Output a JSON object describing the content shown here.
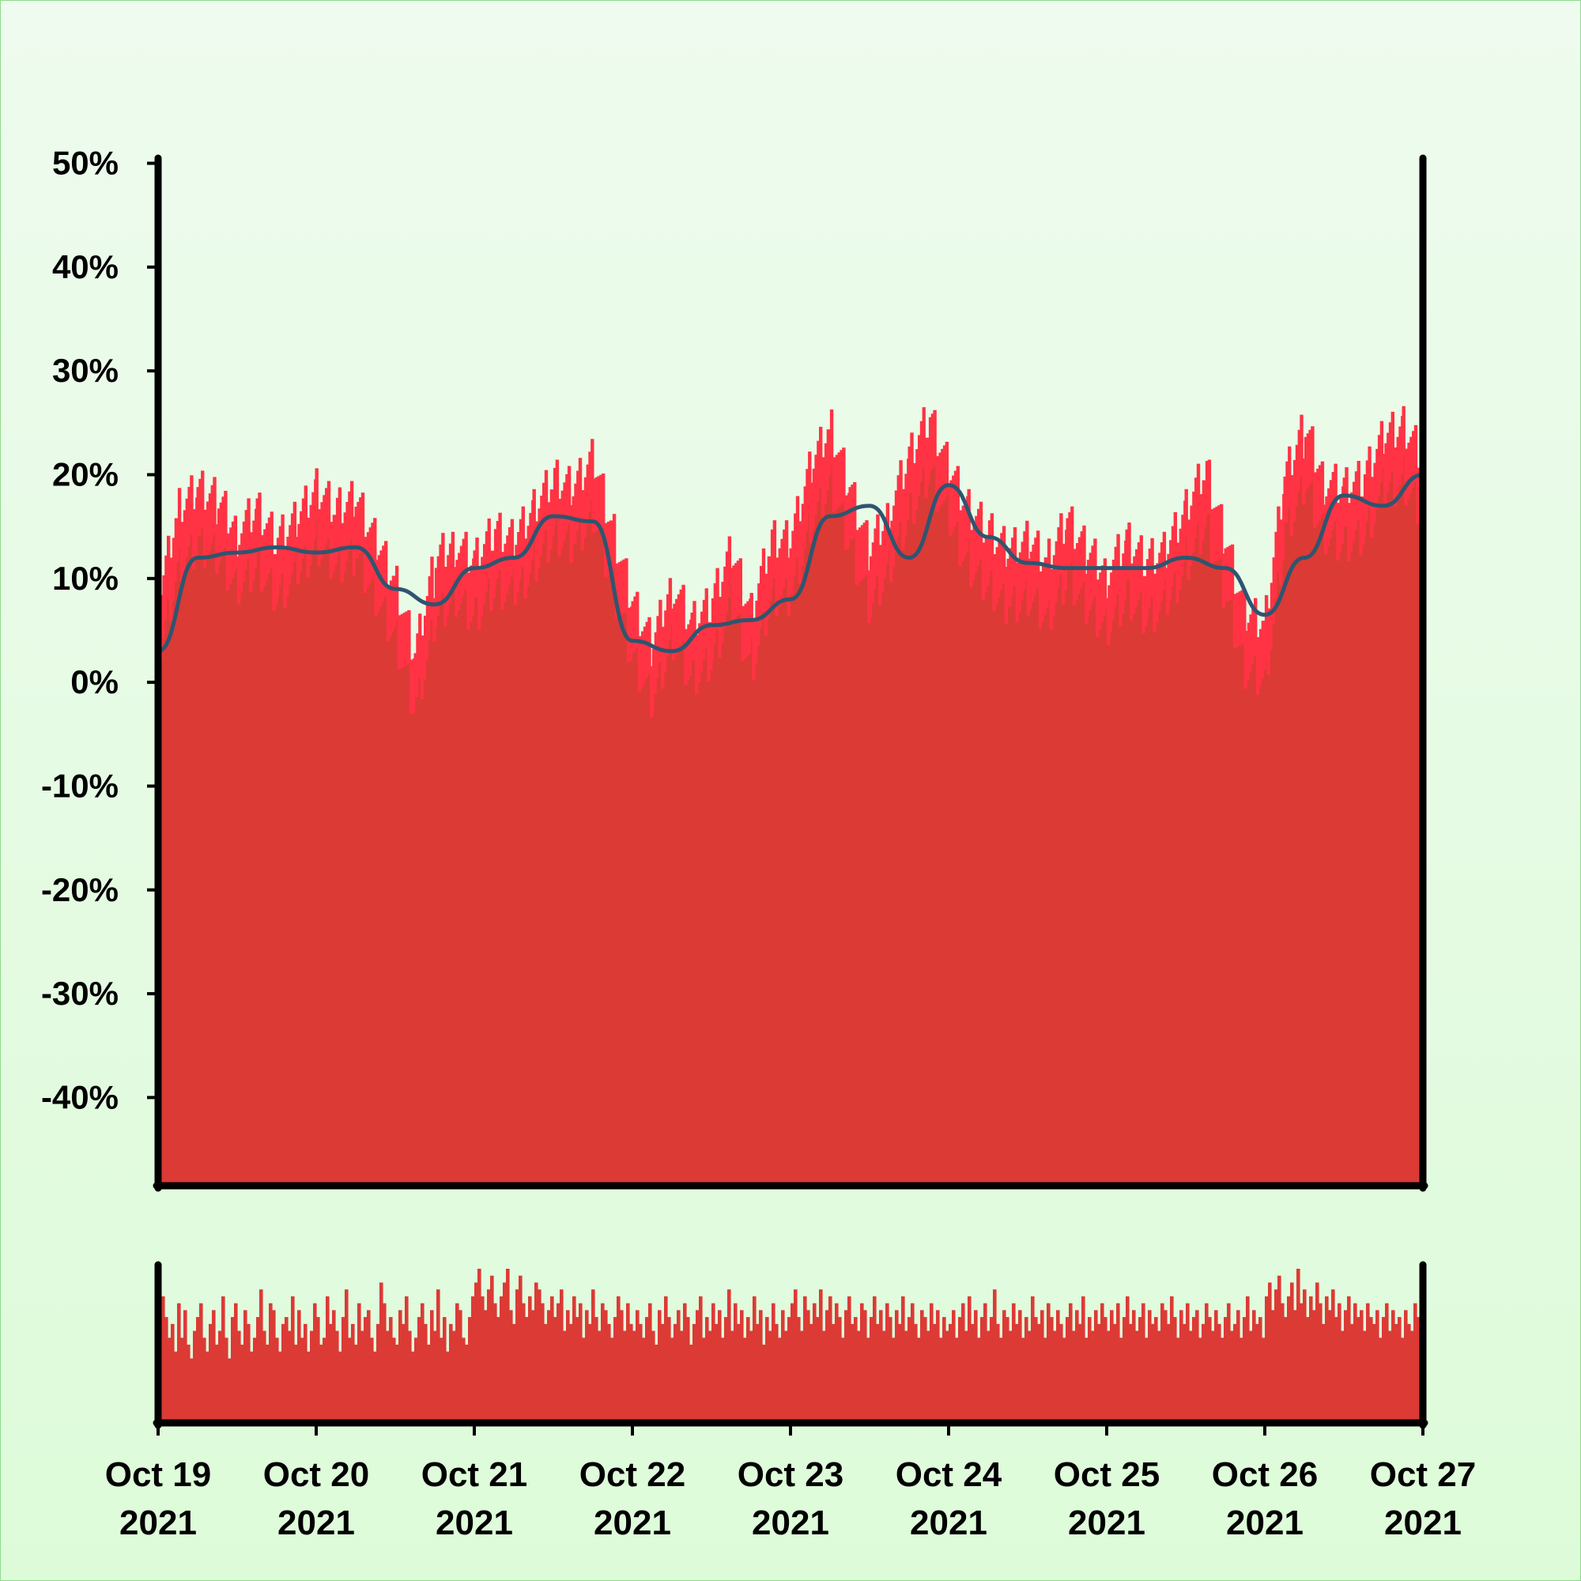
{
  "chart_data": {
    "type": "area",
    "y_axis": {
      "ticks": [
        "50%",
        "40%",
        "30%",
        "20%",
        "10%",
        "0%",
        "-10%",
        "-20%",
        "-30%",
        "-40%"
      ],
      "tick_values": [
        50,
        40,
        30,
        20,
        10,
        0,
        -10,
        -20,
        -30,
        -40
      ],
      "range": [
        -48.5,
        50.5
      ],
      "unit": "%"
    },
    "x_axis": {
      "range": [
        "2021-10-19",
        "2021-10-27"
      ],
      "ticks": [
        {
          "line1": "Oct 19",
          "line2": "2021"
        },
        {
          "line1": "Oct 20",
          "line2": "2021"
        },
        {
          "line1": "Oct 21",
          "line2": "2021"
        },
        {
          "line1": "Oct 22",
          "line2": "2021"
        },
        {
          "line1": "Oct 23",
          "line2": "2021"
        },
        {
          "line1": "Oct 24",
          "line2": "2021"
        },
        {
          "line1": "Oct 25",
          "line2": "2021"
        },
        {
          "line1": "Oct 26",
          "line2": "2021"
        },
        {
          "line1": "Oct 27",
          "line2": "2021"
        }
      ]
    },
    "grid": false,
    "series": [
      {
        "kind": "area",
        "color": "#dc3a35",
        "outline_color": "#ff3344",
        "x": [
          "2021-10-19 00:00",
          "2021-10-19 03:00",
          "2021-10-19 06:00",
          "2021-10-19 09:00",
          "2021-10-19 12:00",
          "2021-10-19 15:00",
          "2021-10-19 18:00",
          "2021-10-19 21:00",
          "2021-10-20 00:00",
          "2021-10-20 03:00",
          "2021-10-20 06:00",
          "2021-10-20 09:00",
          "2021-10-20 12:00",
          "2021-10-20 15:00",
          "2021-10-20 18:00",
          "2021-10-20 21:00",
          "2021-10-21 00:00",
          "2021-10-21 03:00",
          "2021-10-21 06:00",
          "2021-10-21 09:00",
          "2021-10-21 12:00",
          "2021-10-21 15:00",
          "2021-10-21 18:00",
          "2021-10-21 21:00",
          "2021-10-22 00:00",
          "2021-10-22 03:00",
          "2021-10-22 06:00",
          "2021-10-22 09:00",
          "2021-10-22 12:00",
          "2021-10-22 15:00",
          "2021-10-22 18:00",
          "2021-10-22 21:00",
          "2021-10-23 00:00",
          "2021-10-23 03:00",
          "2021-10-23 06:00",
          "2021-10-23 09:00",
          "2021-10-23 12:00",
          "2021-10-23 15:00",
          "2021-10-23 18:00",
          "2021-10-23 21:00",
          "2021-10-24 00:00",
          "2021-10-24 03:00",
          "2021-10-24 06:00",
          "2021-10-24 09:00",
          "2021-10-24 12:00",
          "2021-10-24 15:00",
          "2021-10-24 18:00",
          "2021-10-24 21:00",
          "2021-10-25 00:00",
          "2021-10-25 03:00",
          "2021-10-25 06:00",
          "2021-10-25 09:00",
          "2021-10-25 12:00",
          "2021-10-25 15:00",
          "2021-10-25 18:00",
          "2021-10-25 21:00",
          "2021-10-26 00:00",
          "2021-10-26 03:00",
          "2021-10-26 06:00",
          "2021-10-26 09:00",
          "2021-10-26 12:00",
          "2021-10-26 15:00",
          "2021-10-26 18:00",
          "2021-10-26 21:00",
          "2021-10-27 00:00"
        ],
        "values": [
          5,
          14,
          16,
          15,
          12,
          14,
          11,
          13,
          16,
          14,
          15,
          11,
          7,
          0,
          9,
          11,
          9,
          12,
          11,
          14,
          17,
          16,
          19,
          12,
          5,
          1,
          7,
          3,
          5,
          10,
          4,
          11,
          11,
          18,
          22,
          16,
          10,
          14,
          19,
          23,
          18,
          14,
          12,
          10,
          11,
          9,
          13,
          10,
          8,
          11,
          9,
          10,
          14,
          18,
          11,
          4,
          3,
          17,
          22,
          17,
          16,
          17,
          21,
          22,
          19
        ]
      },
      {
        "kind": "line",
        "color": "#2e5570",
        "x": [
          "2021-10-19 00:00",
          "2021-10-19 06:00",
          "2021-10-19 12:00",
          "2021-10-19 18:00",
          "2021-10-20 00:00",
          "2021-10-20 06:00",
          "2021-10-20 12:00",
          "2021-10-20 18:00",
          "2021-10-21 00:00",
          "2021-10-21 06:00",
          "2021-10-21 12:00",
          "2021-10-21 18:00",
          "2021-10-22 00:00",
          "2021-10-22 06:00",
          "2021-10-22 12:00",
          "2021-10-22 18:00",
          "2021-10-23 00:00",
          "2021-10-23 06:00",
          "2021-10-23 12:00",
          "2021-10-23 18:00",
          "2021-10-24 00:00",
          "2021-10-24 06:00",
          "2021-10-24 12:00",
          "2021-10-24 18:00",
          "2021-10-25 00:00",
          "2021-10-25 06:00",
          "2021-10-25 12:00",
          "2021-10-25 18:00",
          "2021-10-26 00:00",
          "2021-10-26 06:00",
          "2021-10-26 12:00",
          "2021-10-26 18:00",
          "2021-10-27 00:00"
        ],
        "values": [
          3,
          12,
          12.5,
          13,
          12.5,
          13,
          9,
          7.5,
          11,
          12,
          16,
          15.5,
          4,
          3,
          5.5,
          6,
          8,
          16,
          17,
          12,
          19,
          14,
          11.5,
          11,
          11,
          11,
          12,
          11,
          6.5,
          12,
          18,
          17,
          20
        ]
      }
    ],
    "navigator": {
      "type": "bar",
      "color": "#dc3a35",
      "values": [
        11,
        18,
        15,
        12,
        14,
        10,
        17,
        12,
        16,
        11,
        9,
        13,
        15,
        17,
        12,
        10,
        14,
        16,
        11,
        13,
        18,
        12,
        9,
        15,
        17,
        13,
        11,
        16,
        14,
        10,
        12,
        15,
        19,
        13,
        11,
        17,
        16,
        12,
        10,
        14,
        15,
        13,
        18,
        11,
        16,
        12,
        14,
        10,
        13,
        17,
        15,
        11,
        12,
        18,
        14,
        16,
        13,
        10,
        15,
        19,
        12,
        14,
        11,
        17,
        13,
        15,
        16,
        12,
        10,
        14,
        20,
        17,
        13,
        15,
        12,
        11,
        16,
        14,
        18,
        13,
        10,
        12,
        15,
        17,
        14,
        11,
        16,
        13,
        19,
        12,
        15,
        10,
        14,
        13,
        17,
        16,
        12,
        11,
        15,
        18,
        20,
        22,
        18,
        16,
        19,
        21,
        17,
        15,
        18,
        20,
        22,
        16,
        14,
        19,
        21,
        17,
        15,
        18,
        16,
        20,
        19,
        17,
        14,
        16,
        18,
        15,
        17,
        19,
        13,
        16,
        14,
        18,
        15,
        17,
        12,
        16,
        14,
        19,
        15,
        13,
        17,
        16,
        14,
        12,
        15,
        18,
        16,
        13,
        17,
        14,
        13,
        16,
        14,
        12,
        15,
        17,
        13,
        11,
        16,
        14,
        18,
        15,
        12,
        14,
        16,
        13,
        17,
        15,
        11,
        14,
        16,
        18,
        12,
        15,
        13,
        17,
        14,
        16,
        12,
        15,
        19,
        13,
        17,
        14,
        16,
        12,
        15,
        13,
        18,
        14,
        16,
        11,
        15,
        13,
        17,
        14,
        12,
        16,
        13,
        15,
        17,
        19,
        15,
        13,
        18,
        16,
        14,
        17,
        15,
        19,
        13,
        16,
        18,
        14,
        17,
        15,
        12,
        16,
        18,
        14,
        15,
        13,
        17,
        16,
        12,
        15,
        18,
        14,
        16,
        13,
        17,
        15,
        12,
        16,
        14,
        18,
        13,
        15,
        17,
        14,
        12,
        16,
        15,
        13,
        17,
        14,
        16,
        12,
        15,
        13,
        14,
        16,
        12,
        15,
        17,
        13,
        18,
        14,
        16,
        12,
        15,
        17,
        13,
        15,
        19,
        14,
        12,
        16,
        15,
        13,
        17,
        14,
        16,
        12,
        15,
        13,
        18,
        15,
        14,
        16,
        12,
        17,
        15,
        13,
        16,
        14,
        12,
        15,
        17,
        13,
        16,
        14,
        18,
        12,
        15,
        13,
        16,
        14,
        17,
        15,
        13,
        16,
        14,
        17,
        12,
        15,
        18,
        14,
        16,
        13,
        15,
        17,
        12,
        16,
        14,
        15,
        13,
        17,
        16,
        14,
        18,
        15,
        12,
        16,
        14,
        17,
        13,
        15,
        16,
        12,
        14,
        17,
        15,
        13,
        16,
        14,
        12,
        15,
        17,
        13,
        14,
        16,
        12,
        15,
        18,
        13,
        16,
        14,
        15,
        12,
        18,
        20,
        16,
        19,
        21,
        17,
        15,
        18,
        20,
        16,
        22,
        17,
        19,
        15,
        18,
        16,
        20,
        17,
        14,
        18,
        16,
        19,
        15,
        17,
        13,
        16,
        18,
        14,
        17,
        15,
        16,
        13,
        17,
        15,
        14,
        16,
        12,
        15,
        17,
        13,
        16,
        14,
        15,
        12,
        16,
        14,
        13,
        17,
        15,
        14
      ]
    }
  }
}
